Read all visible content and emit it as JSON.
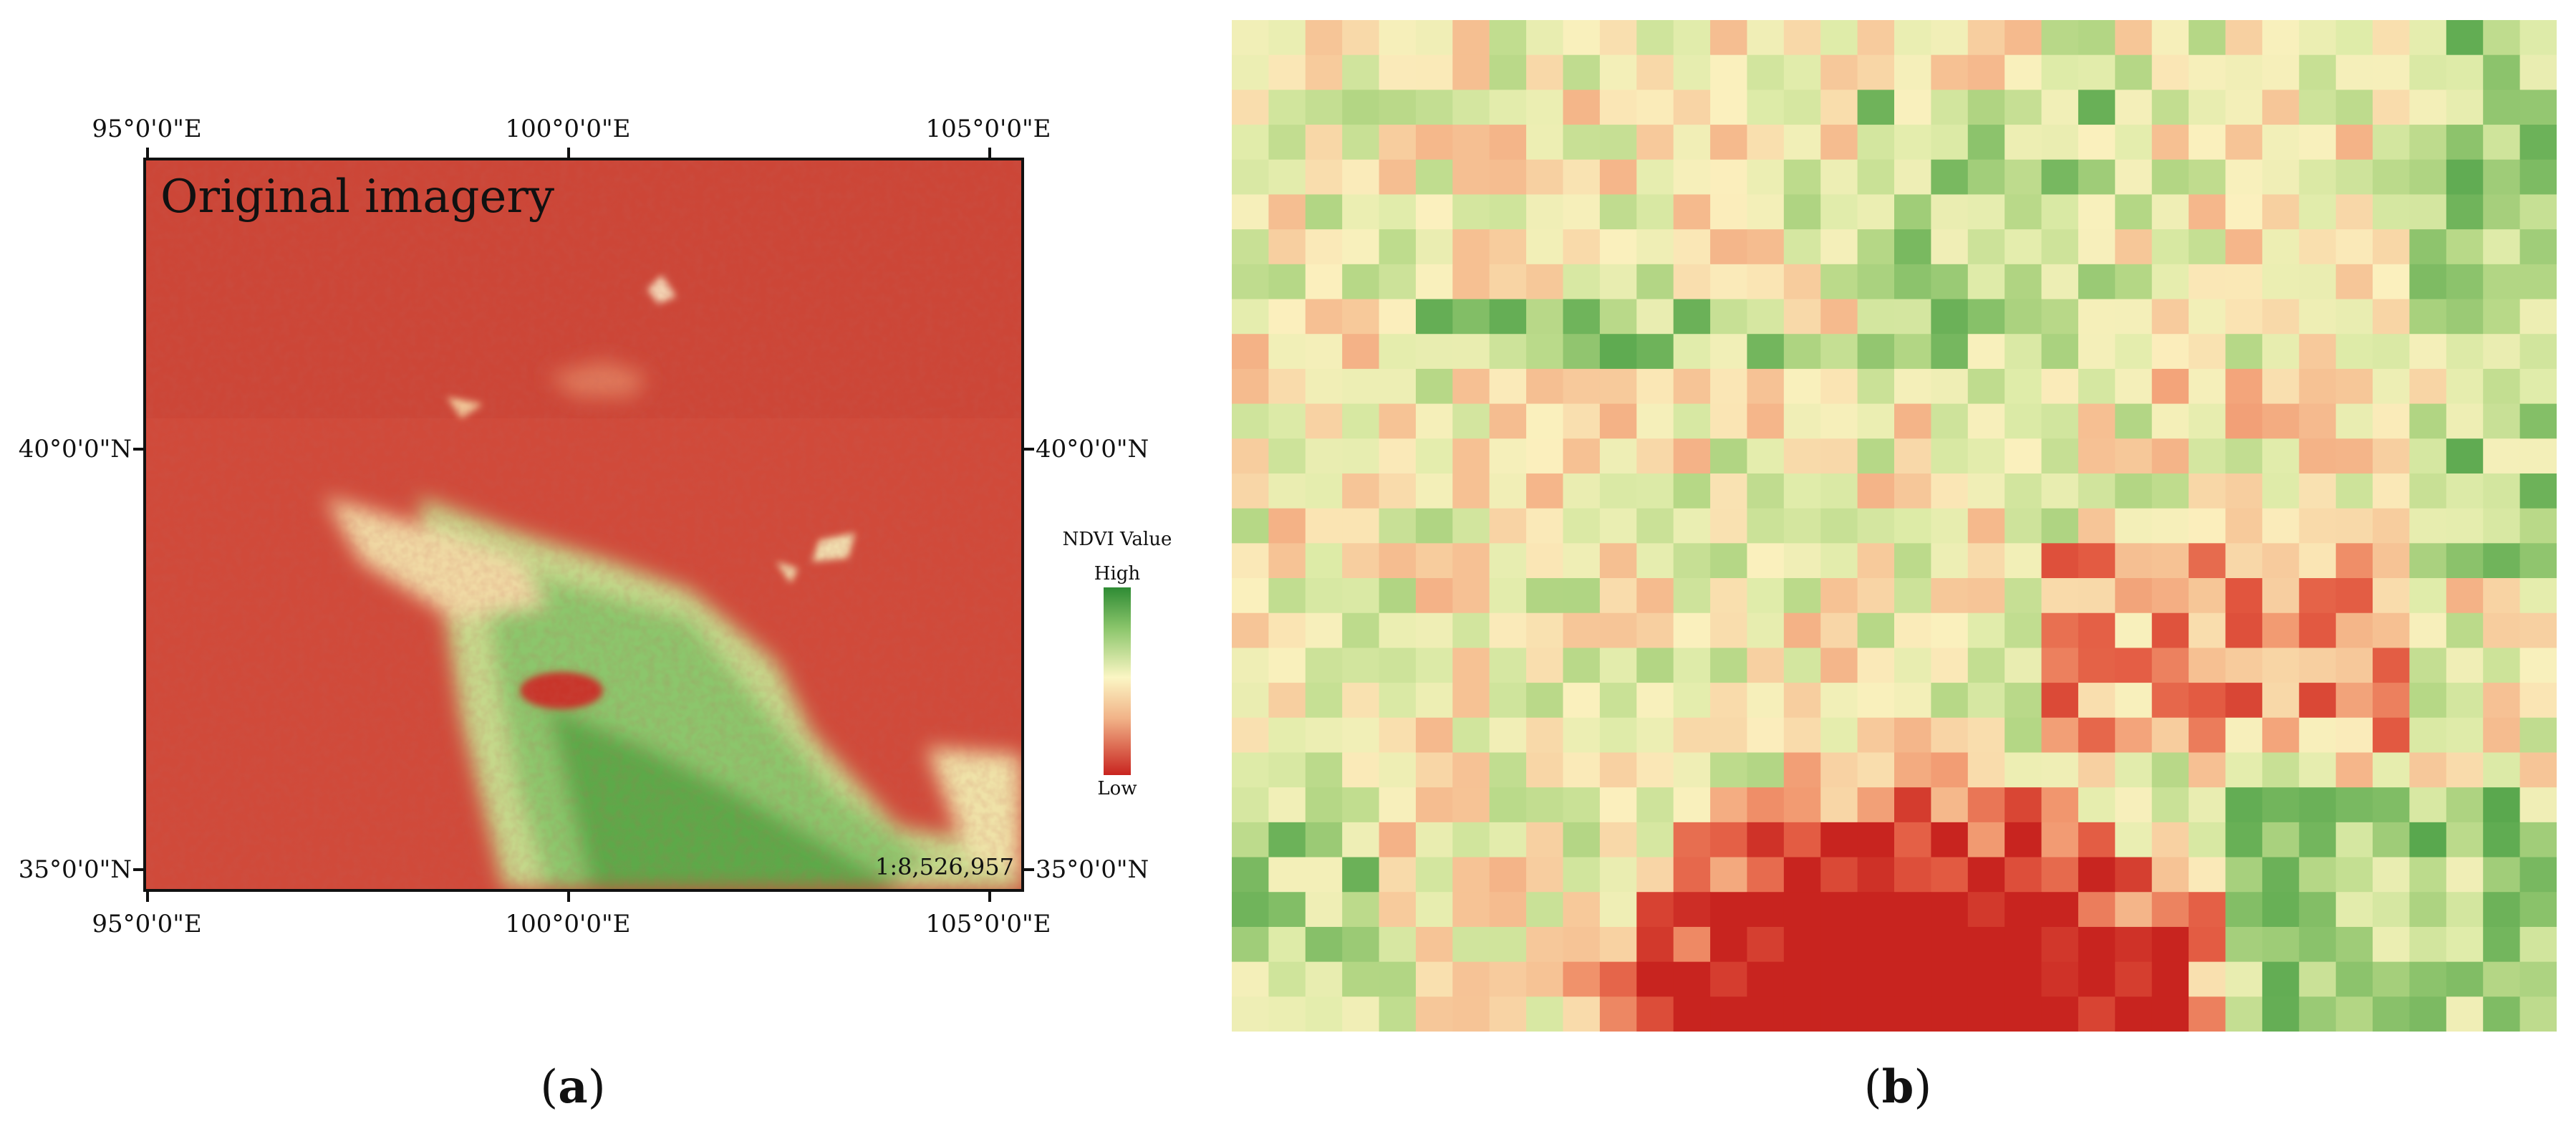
{
  "figure": {
    "panel_a": {
      "caption_open": "(",
      "caption_letter": "a",
      "caption_close": ")",
      "map_label": "Original imagery",
      "scale": "1:8,526,957",
      "coords": {
        "top": [
          "95°0'0\"E",
          "100°0'0\"E",
          "105°0'0\"E"
        ],
        "bottom": [
          "95°0'0\"E",
          "100°0'0\"E",
          "105°0'0\"E"
        ],
        "left": [
          "40°0'0\"N",
          "35°0'0\"N"
        ],
        "right": [
          "40°0'0\"N",
          "35°0'0\"N"
        ]
      },
      "legend": {
        "title": "NDVI Value",
        "high": "High",
        "low": "Low",
        "colors": [
          "#2e8b34",
          "#8cc66c",
          "#fbf6c4",
          "#f1b287",
          "#c8241f"
        ]
      }
    },
    "panel_b": {
      "caption_open": "(",
      "caption_letter": "b",
      "caption_close": ")"
    }
  }
}
